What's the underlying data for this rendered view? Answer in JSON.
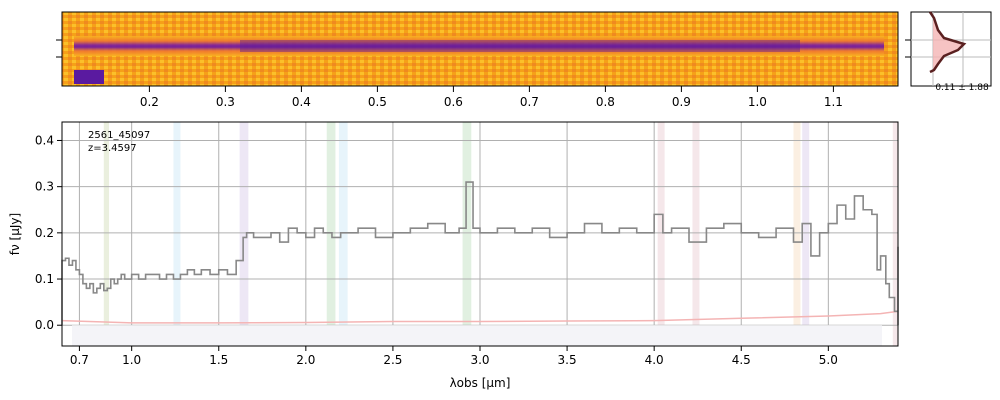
{
  "chart_data": {
    "type": "line",
    "object_id": "2561_45097",
    "redshift_label": "z=3.4597",
    "xlabel": "λobs [μm]",
    "ylabel": "fν [μJy]",
    "xlim": [
      0.6,
      5.4
    ],
    "ylim": [
      -0.045,
      0.44
    ],
    "xticks": [
      {
        "pos": 0.7,
        "label": "0.7"
      },
      {
        "pos": 1.0,
        "label": "1.0"
      },
      {
        "pos": 1.5,
        "label": "1.5"
      },
      {
        "pos": 2.0,
        "label": "2.0"
      },
      {
        "pos": 2.5,
        "label": "2.5"
      },
      {
        "pos": 3.0,
        "label": "3.0"
      },
      {
        "pos": 3.5,
        "label": "3.5"
      },
      {
        "pos": 4.0,
        "label": "4.0"
      },
      {
        "pos": 4.5,
        "label": "4.5"
      },
      {
        "pos": 5.0,
        "label": "5.0"
      }
    ],
    "yticks": [
      {
        "v": 0.0,
        "label": "0.0"
      },
      {
        "v": 0.1,
        "label": "0.1"
      },
      {
        "v": 0.2,
        "label": "0.2"
      },
      {
        "v": 0.3,
        "label": "0.3"
      },
      {
        "v": 0.4,
        "label": "0.4"
      }
    ],
    "line_bands": [
      {
        "x0": 0.84,
        "x1": 0.87,
        "color": "#8aa84a"
      },
      {
        "x0": 1.24,
        "x1": 1.28,
        "color": "#7ac0e8"
      },
      {
        "x0": 1.62,
        "x1": 1.67,
        "color": "#9a7ac8"
      },
      {
        "x0": 2.12,
        "x1": 2.17,
        "color": "#5aaa5a"
      },
      {
        "x0": 2.19,
        "x1": 2.24,
        "color": "#7ac0e8"
      },
      {
        "x0": 2.9,
        "x1": 2.95,
        "color": "#5aaa5a"
      },
      {
        "x0": 4.02,
        "x1": 4.06,
        "color": "#c87a8a"
      },
      {
        "x0": 4.22,
        "x1": 4.26,
        "color": "#c87a8a"
      },
      {
        "x0": 4.8,
        "x1": 4.84,
        "color": "#e8a860"
      },
      {
        "x0": 4.85,
        "x1": 4.89,
        "color": "#9a7ac8"
      },
      {
        "x0": 5.37,
        "x1": 5.4,
        "color": "#c87a8a"
      }
    ],
    "series": [
      {
        "name": "flux",
        "color": "#888888",
        "x": [
          0.6,
          0.62,
          0.64,
          0.66,
          0.68,
          0.7,
          0.72,
          0.74,
          0.76,
          0.78,
          0.8,
          0.82,
          0.84,
          0.86,
          0.88,
          0.9,
          0.92,
          0.94,
          0.96,
          0.98,
          1.0,
          1.04,
          1.08,
          1.12,
          1.16,
          1.2,
          1.24,
          1.28,
          1.32,
          1.36,
          1.4,
          1.45,
          1.5,
          1.55,
          1.6,
          1.64,
          1.66,
          1.7,
          1.75,
          1.8,
          1.85,
          1.9,
          1.95,
          2.0,
          2.05,
          2.1,
          2.15,
          2.2,
          2.3,
          2.4,
          2.5,
          2.6,
          2.7,
          2.8,
          2.88,
          2.92,
          2.96,
          3.0,
          3.1,
          3.2,
          3.3,
          3.4,
          3.5,
          3.6,
          3.7,
          3.8,
          3.9,
          4.0,
          4.05,
          4.1,
          4.2,
          4.3,
          4.4,
          4.5,
          4.6,
          4.7,
          4.8,
          4.85,
          4.9,
          4.95,
          5.0,
          5.05,
          5.1,
          5.15,
          5.2,
          5.25,
          5.28,
          5.3,
          5.33,
          5.35,
          5.38,
          5.4
        ],
        "values": [
          0.14,
          0.145,
          0.13,
          0.14,
          0.12,
          0.11,
          0.09,
          0.08,
          0.09,
          0.07,
          0.08,
          0.09,
          0.075,
          0.08,
          0.1,
          0.09,
          0.1,
          0.11,
          0.1,
          0.1,
          0.11,
          0.1,
          0.11,
          0.11,
          0.1,
          0.11,
          0.1,
          0.11,
          0.12,
          0.11,
          0.12,
          0.11,
          0.12,
          0.11,
          0.14,
          0.19,
          0.2,
          0.19,
          0.19,
          0.2,
          0.18,
          0.21,
          0.2,
          0.19,
          0.21,
          0.2,
          0.19,
          0.2,
          0.21,
          0.19,
          0.2,
          0.21,
          0.22,
          0.2,
          0.21,
          0.31,
          0.21,
          0.2,
          0.21,
          0.2,
          0.21,
          0.19,
          0.2,
          0.22,
          0.2,
          0.21,
          0.2,
          0.24,
          0.2,
          0.21,
          0.18,
          0.21,
          0.22,
          0.2,
          0.19,
          0.21,
          0.18,
          0.22,
          0.15,
          0.2,
          0.22,
          0.26,
          0.23,
          0.28,
          0.25,
          0.24,
          0.12,
          0.15,
          0.09,
          0.06,
          0.03,
          0.17
        ]
      },
      {
        "name": "error",
        "color": "#f4b4b4",
        "x": [
          0.6,
          1.0,
          1.5,
          2.0,
          2.5,
          3.0,
          3.5,
          4.0,
          4.5,
          5.0,
          5.3,
          5.4
        ],
        "values": [
          0.01,
          0.005,
          0.005,
          0.006,
          0.008,
          0.008,
          0.009,
          0.01,
          0.015,
          0.02,
          0.025,
          0.03
        ]
      }
    ],
    "spectrum2d": {
      "top_ticks": [
        {
          "pos": 0.2,
          "label": "0.2"
        },
        {
          "pos": 0.3,
          "label": "0.3"
        },
        {
          "pos": 0.4,
          "label": "0.4"
        },
        {
          "pos": 0.5,
          "label": "0.5"
        },
        {
          "pos": 0.6,
          "label": "0.6"
        },
        {
          "pos": 0.7,
          "label": "0.7"
        },
        {
          "pos": 0.8,
          "label": "0.8"
        },
        {
          "pos": 0.9,
          "label": "0.9"
        },
        {
          "pos": 1.0,
          "label": "1.0"
        },
        {
          "pos": 1.1,
          "label": "1.1"
        }
      ],
      "profile_label": "0.11 ± 1.88"
    }
  }
}
